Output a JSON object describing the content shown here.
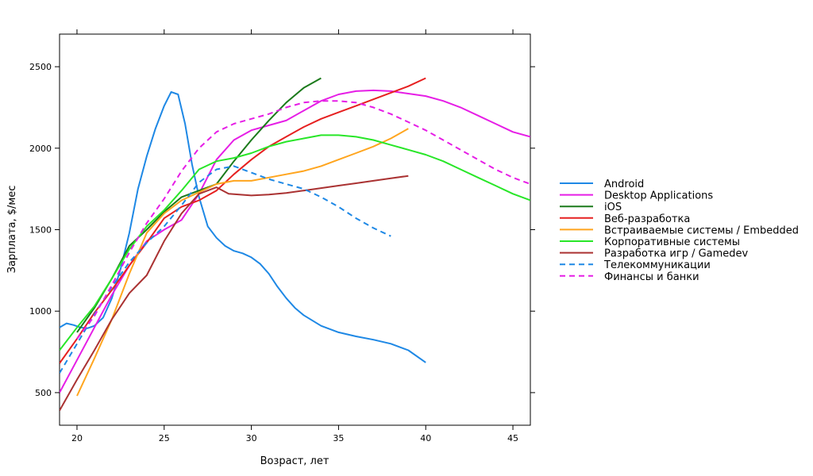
{
  "chart_data": {
    "type": "line",
    "title": "",
    "xlabel": "Возраст, лет",
    "ylabel": "Зарплата, $/мес",
    "xlim": [
      19,
      46
    ],
    "ylim": [
      300,
      2700
    ],
    "x_ticks": [
      20,
      25,
      30,
      35,
      40,
      45
    ],
    "y_ticks": [
      500,
      1000,
      1500,
      2000,
      2500
    ],
    "grid": false,
    "legend_position": "right",
    "series": [
      {
        "name": "Android",
        "color": "#1e88e5",
        "dash": false,
        "points": [
          [
            19,
            900
          ],
          [
            19.4,
            925
          ],
          [
            19.8,
            915
          ],
          [
            20.2,
            900
          ],
          [
            20.6,
            895
          ],
          [
            21,
            910
          ],
          [
            21.5,
            960
          ],
          [
            22,
            1080
          ],
          [
            22.5,
            1260
          ],
          [
            23,
            1480
          ],
          [
            23.5,
            1750
          ],
          [
            24,
            1950
          ],
          [
            24.5,
            2120
          ],
          [
            25,
            2260
          ],
          [
            25.4,
            2345
          ],
          [
            25.8,
            2330
          ],
          [
            26.2,
            2150
          ],
          [
            26.6,
            1900
          ],
          [
            27,
            1700
          ],
          [
            27.5,
            1520
          ],
          [
            28,
            1450
          ],
          [
            28.5,
            1400
          ],
          [
            29,
            1370
          ],
          [
            29.5,
            1355
          ],
          [
            30,
            1330
          ],
          [
            30.5,
            1290
          ],
          [
            31,
            1230
          ],
          [
            31.5,
            1150
          ],
          [
            32,
            1080
          ],
          [
            32.5,
            1020
          ],
          [
            33,
            975
          ],
          [
            34,
            910
          ],
          [
            35,
            870
          ],
          [
            36,
            845
          ],
          [
            37,
            825
          ],
          [
            38,
            800
          ],
          [
            39,
            760
          ],
          [
            40,
            685
          ]
        ]
      },
      {
        "name": "Desktop Applications",
        "color": "#e61ee6",
        "dash": false,
        "points": [
          [
            19,
            500
          ],
          [
            20,
            700
          ],
          [
            21,
            900
          ],
          [
            22,
            1100
          ],
          [
            23,
            1280
          ],
          [
            24,
            1430
          ],
          [
            25,
            1500
          ],
          [
            26,
            1560
          ],
          [
            27,
            1720
          ],
          [
            28,
            1930
          ],
          [
            29,
            2050
          ],
          [
            30,
            2110
          ],
          [
            31,
            2140
          ],
          [
            32,
            2170
          ],
          [
            33,
            2230
          ],
          [
            34,
            2290
          ],
          [
            35,
            2330
          ],
          [
            36,
            2350
          ],
          [
            37,
            2355
          ],
          [
            38,
            2350
          ],
          [
            39,
            2335
          ],
          [
            40,
            2320
          ],
          [
            41,
            2290
          ],
          [
            42,
            2250
          ],
          [
            43,
            2200
          ],
          [
            44,
            2150
          ],
          [
            45,
            2100
          ],
          [
            46,
            2070
          ]
        ]
      },
      {
        "name": "iOS",
        "color": "#1b7a1b",
        "dash": false,
        "points": [
          [
            20,
            870
          ],
          [
            21,
            1020
          ],
          [
            22,
            1200
          ],
          [
            23,
            1400
          ],
          [
            24,
            1500
          ],
          [
            25,
            1610
          ],
          [
            26,
            1700
          ],
          [
            27,
            1740
          ],
          [
            28,
            1780
          ],
          [
            29,
            1920
          ],
          [
            30,
            2050
          ],
          [
            31,
            2170
          ],
          [
            32,
            2280
          ],
          [
            33,
            2370
          ],
          [
            34,
            2430
          ]
        ]
      },
      {
        "name": "Веб-разработка",
        "color": "#e62020",
        "dash": false,
        "points": [
          [
            19,
            680
          ],
          [
            20,
            830
          ],
          [
            21,
            990
          ],
          [
            22,
            1130
          ],
          [
            23,
            1280
          ],
          [
            24,
            1420
          ],
          [
            25,
            1570
          ],
          [
            26,
            1640
          ],
          [
            27,
            1680
          ],
          [
            28,
            1740
          ],
          [
            29,
            1840
          ],
          [
            30,
            1930
          ],
          [
            31,
            2010
          ],
          [
            32,
            2070
          ],
          [
            33,
            2130
          ],
          [
            34,
            2180
          ],
          [
            35,
            2220
          ],
          [
            36,
            2260
          ],
          [
            37,
            2300
          ],
          [
            38,
            2340
          ],
          [
            39,
            2380
          ],
          [
            40,
            2430
          ]
        ]
      },
      {
        "name": "Встраиваемые системы / Embedded",
        "color": "#ffa51e",
        "dash": false,
        "points": [
          [
            20,
            480
          ],
          [
            21,
            710
          ],
          [
            22,
            950
          ],
          [
            23,
            1230
          ],
          [
            24,
            1480
          ],
          [
            25,
            1600
          ],
          [
            26,
            1680
          ],
          [
            27,
            1730
          ],
          [
            28,
            1780
          ],
          [
            29,
            1800
          ],
          [
            30,
            1800
          ],
          [
            31,
            1820
          ],
          [
            32,
            1840
          ],
          [
            33,
            1860
          ],
          [
            34,
            1890
          ],
          [
            35,
            1930
          ],
          [
            36,
            1970
          ],
          [
            37,
            2010
          ],
          [
            38,
            2060
          ],
          [
            39,
            2120
          ]
        ]
      },
      {
        "name": "Корпоративные системы",
        "color": "#28e628",
        "dash": false,
        "points": [
          [
            19,
            760
          ],
          [
            20,
            900
          ],
          [
            21,
            1030
          ],
          [
            22,
            1200
          ],
          [
            23,
            1380
          ],
          [
            24,
            1520
          ],
          [
            25,
            1620
          ],
          [
            26,
            1740
          ],
          [
            27,
            1870
          ],
          [
            28,
            1920
          ],
          [
            29,
            1940
          ],
          [
            30,
            1970
          ],
          [
            31,
            2010
          ],
          [
            32,
            2040
          ],
          [
            33,
            2060
          ],
          [
            34,
            2080
          ],
          [
            35,
            2080
          ],
          [
            36,
            2070
          ],
          [
            37,
            2050
          ],
          [
            38,
            2020
          ],
          [
            39,
            1990
          ],
          [
            40,
            1960
          ],
          [
            41,
            1920
          ],
          [
            42,
            1870
          ],
          [
            43,
            1820
          ],
          [
            44,
            1770
          ],
          [
            45,
            1720
          ],
          [
            46,
            1680
          ]
        ]
      },
      {
        "name": "Разработка игр / Gamedev",
        "color": "#aa3232",
        "dash": false,
        "points": [
          [
            19,
            390
          ],
          [
            20,
            580
          ],
          [
            21,
            760
          ],
          [
            22,
            950
          ],
          [
            23,
            1110
          ],
          [
            24,
            1220
          ],
          [
            25,
            1430
          ],
          [
            26,
            1600
          ],
          [
            27,
            1720
          ],
          [
            28,
            1760
          ],
          [
            28.7,
            1720
          ],
          [
            30,
            1710
          ],
          [
            31,
            1715
          ],
          [
            32,
            1725
          ],
          [
            33,
            1740
          ],
          [
            34,
            1755
          ],
          [
            35,
            1770
          ],
          [
            36,
            1785
          ],
          [
            37,
            1800
          ],
          [
            38,
            1815
          ],
          [
            39,
            1830
          ]
        ]
      },
      {
        "name": "Телекоммуникации",
        "color": "#1e88e5",
        "dash": true,
        "points": [
          [
            19,
            620
          ],
          [
            20,
            800
          ],
          [
            21,
            980
          ],
          [
            22,
            1150
          ],
          [
            23,
            1300
          ],
          [
            24,
            1420
          ],
          [
            25,
            1520
          ],
          [
            26,
            1650
          ],
          [
            27,
            1790
          ],
          [
            28,
            1870
          ],
          [
            29,
            1890
          ],
          [
            30,
            1850
          ],
          [
            31,
            1810
          ],
          [
            32,
            1780
          ],
          [
            33,
            1750
          ],
          [
            34,
            1700
          ],
          [
            35,
            1640
          ],
          [
            36,
            1570
          ],
          [
            37,
            1510
          ],
          [
            38,
            1460
          ]
        ]
      },
      {
        "name": "Финансы и банки",
        "color": "#e61ee6",
        "dash": true,
        "points": [
          [
            20,
            830
          ],
          [
            21,
            970
          ],
          [
            22,
            1160
          ],
          [
            23,
            1360
          ],
          [
            24,
            1540
          ],
          [
            25,
            1690
          ],
          [
            26,
            1860
          ],
          [
            27,
            2000
          ],
          [
            28,
            2100
          ],
          [
            29,
            2150
          ],
          [
            30,
            2180
          ],
          [
            31,
            2210
          ],
          [
            32,
            2250
          ],
          [
            33,
            2280
          ],
          [
            34,
            2290
          ],
          [
            35,
            2290
          ],
          [
            36,
            2280
          ],
          [
            37,
            2250
          ],
          [
            38,
            2210
          ],
          [
            39,
            2160
          ],
          [
            40,
            2110
          ],
          [
            41,
            2050
          ],
          [
            42,
            1990
          ],
          [
            43,
            1930
          ],
          [
            44,
            1870
          ],
          [
            45,
            1820
          ],
          [
            46,
            1780
          ]
        ]
      }
    ]
  }
}
